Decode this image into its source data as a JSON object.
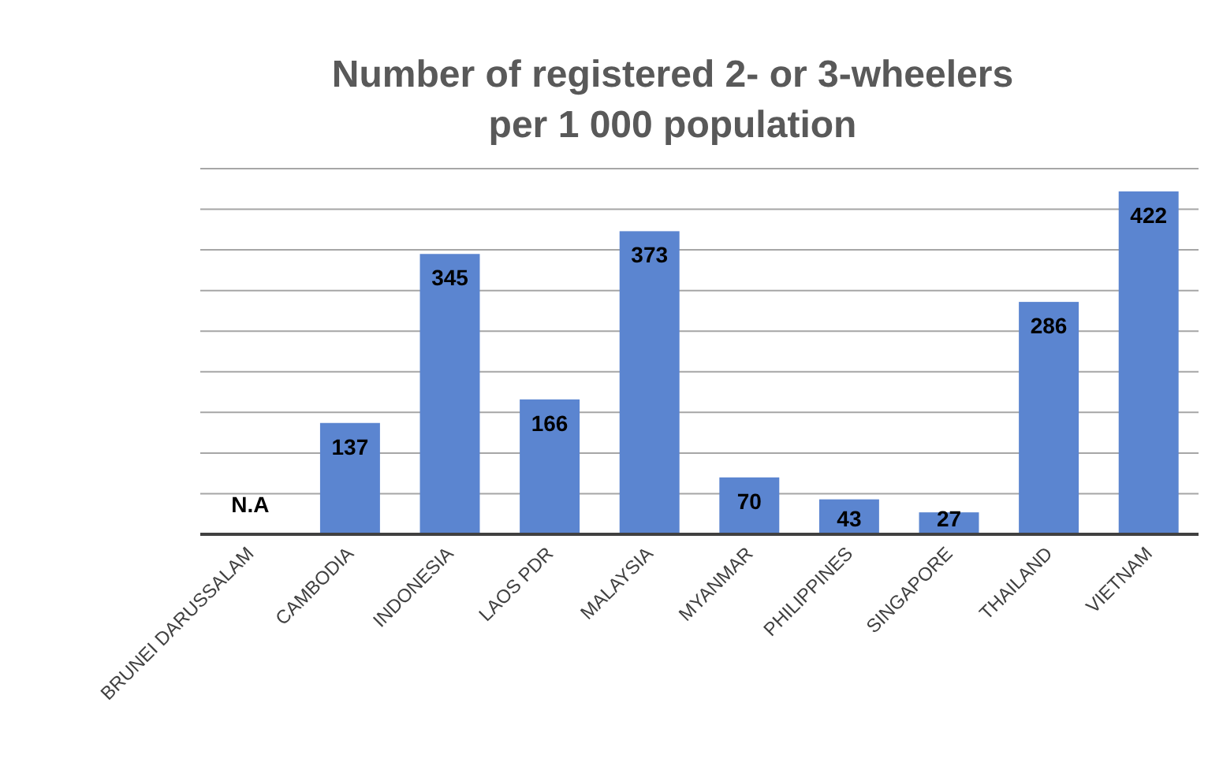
{
  "chart_data": {
    "type": "bar",
    "title": "Number of registered 2- or 3-wheelers\nper 1 000 population",
    "categories": [
      "BRUNEI DARUSSALAM",
      "CAMBODIA",
      "INDONESIA",
      "LAOS PDR",
      "MALAYSIA",
      "MYANMAR",
      "PHILIPPINES",
      "SINGAPORE",
      "THAILAND",
      "VIETNAM"
    ],
    "values": [
      null,
      137,
      345,
      166,
      373,
      70,
      43,
      27,
      286,
      422
    ],
    "value_labels": [
      "N.A",
      "137",
      "345",
      "166",
      "373",
      "70",
      "43",
      "27",
      "286",
      "422"
    ],
    "color": "#5b85d0",
    "ylim": [
      0,
      450
    ],
    "yticks": [
      {
        "value": 0,
        "label": null
      },
      {
        "value": 50,
        "label": null
      },
      {
        "value": 100,
        "label": null
      },
      {
        "value": 150,
        "label": null
      },
      {
        "value": 200,
        "label": null
      },
      {
        "value": 250,
        "label": null
      },
      {
        "value": 300,
        "label": null
      },
      {
        "value": 350,
        "label": null
      },
      {
        "value": 400,
        "label": null
      },
      {
        "value": 450,
        "label": null
      }
    ],
    "grid": "y",
    "tick_labels": "x"
  }
}
